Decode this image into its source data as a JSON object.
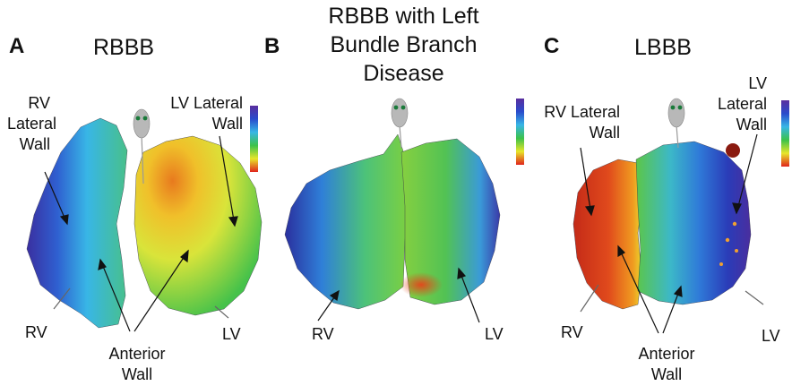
{
  "panels": [
    {
      "letter": "A",
      "title": "RBBB",
      "labels": {
        "rv_lateral": [
          "RV",
          "Lateral",
          "Wall"
        ],
        "lv_lateral": [
          "LV Lateral",
          "Wall"
        ],
        "rv": "RV",
        "lv": "LV",
        "anterior": [
          "Anterior",
          "Wall"
        ]
      }
    },
    {
      "letter": "B",
      "title": [
        "RBBB with Left",
        "Bundle Branch",
        "Disease"
      ],
      "labels": {
        "rv": "RV",
        "lv": "LV"
      }
    },
    {
      "letter": "C",
      "title": "LBBB",
      "labels": {
        "rv_lateral": [
          "RV Lateral",
          "Wall"
        ],
        "lv_lateral": [
          "LV",
          "Lateral",
          "Wall"
        ],
        "rv": "RV",
        "lv": "LV",
        "anterior": [
          "Anterior",
          "Wall"
        ]
      }
    }
  ],
  "colors": {
    "early": "#e0241c",
    "orange": "#f08a1e",
    "yellow": "#e8e62a",
    "green": "#3cc24a",
    "cyan": "#38b6e6",
    "blue": "#2a4ccc",
    "late": "#5a2e9e",
    "catheter": "#b8b8b8",
    "electrode": "#1a7a3a"
  }
}
